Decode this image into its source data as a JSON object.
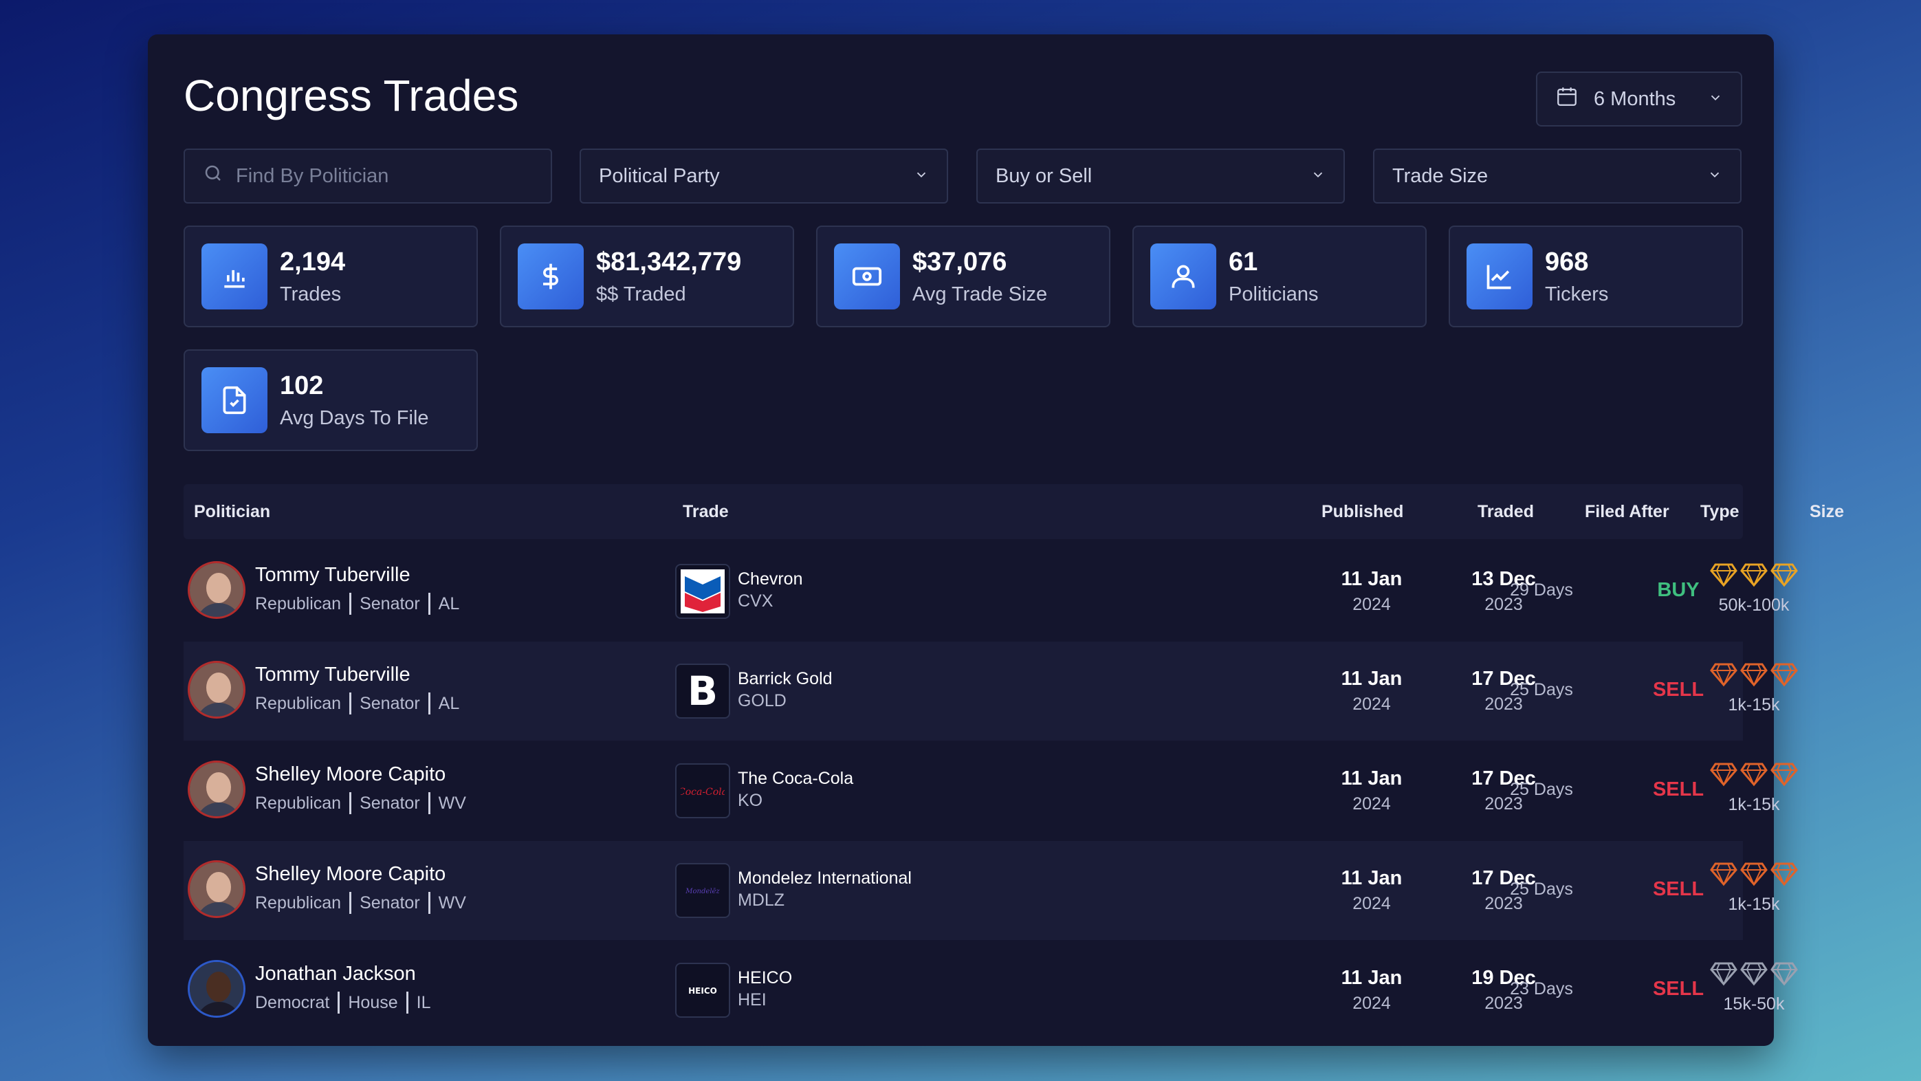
{
  "header": {
    "title": "Congress Trades",
    "period": "6 Months"
  },
  "filters": {
    "search_placeholder": "Find By Politician",
    "party": "Political Party",
    "buy_sell": "Buy or Sell",
    "trade_size": "Trade Size"
  },
  "stats": [
    {
      "value": "2,194",
      "caption": "Trades",
      "icon": "bar-chart-icon"
    },
    {
      "value": "$81,342,779",
      "caption": "$$ Traded",
      "icon": "dollar-icon"
    },
    {
      "value": "$37,076",
      "caption": "Avg Trade Size",
      "icon": "cash-icon"
    },
    {
      "value": "61",
      "caption": "Politicians",
      "icon": "person-icon"
    },
    {
      "value": "968",
      "caption": "Tickers",
      "icon": "line-chart-icon"
    },
    {
      "value": "102",
      "caption": "Avg Days To File",
      "icon": "document-check-icon"
    }
  ],
  "table": {
    "headers": {
      "politician": "Politician",
      "trade": "Trade",
      "published": "Published",
      "traded": "Traded",
      "filed_after": "Filed After",
      "type": "Type",
      "size": "Size"
    },
    "rows": [
      {
        "name": "Tommy Tuberville",
        "party": "Republican",
        "chamber": "Senator",
        "state": "AL",
        "company": "Chevron",
        "ticker": "CVX",
        "pub_day": "11 Jan",
        "pub_year": "2024",
        "trade_day": "13 Dec",
        "trade_year": "2023",
        "filed": "29 Days",
        "type": "BUY",
        "size": "50k-100k",
        "gem_color": "#e9a324"
      },
      {
        "name": "Tommy Tuberville",
        "party": "Republican",
        "chamber": "Senator",
        "state": "AL",
        "company": "Barrick Gold",
        "ticker": "GOLD",
        "pub_day": "11 Jan",
        "pub_year": "2024",
        "trade_day": "17 Dec",
        "trade_year": "2023",
        "filed": "25 Days",
        "type": "SELL",
        "size": "1k-15k",
        "gem_color": "#e0632a"
      },
      {
        "name": "Shelley Moore Capito",
        "party": "Republican",
        "chamber": "Senator",
        "state": "WV",
        "company": "The Coca-Cola",
        "ticker": "KO",
        "pub_day": "11 Jan",
        "pub_year": "2024",
        "trade_day": "17 Dec",
        "trade_year": "2023",
        "filed": "25 Days",
        "type": "SELL",
        "size": "1k-15k",
        "gem_color": "#e0632a"
      },
      {
        "name": "Shelley Moore Capito",
        "party": "Republican",
        "chamber": "Senator",
        "state": "WV",
        "company": "Mondelez International",
        "ticker": "MDLZ",
        "pub_day": "11 Jan",
        "pub_year": "2024",
        "trade_day": "17 Dec",
        "trade_year": "2023",
        "filed": "25 Days",
        "type": "SELL",
        "size": "1k-15k",
        "gem_color": "#e0632a"
      },
      {
        "name": "Jonathan Jackson",
        "party": "Democrat",
        "chamber": "House",
        "state": "IL",
        "company": "HEICO",
        "ticker": "HEI",
        "pub_day": "11 Jan",
        "pub_year": "2024",
        "trade_day": "19 Dec",
        "trade_year": "2023",
        "filed": "23 Days",
        "type": "SELL",
        "size": "15k-50k",
        "gem_color": "#9aa0b0"
      }
    ]
  },
  "colors": {
    "buy": "#3fbf7f",
    "sell": "#e5364a",
    "accent": "#3f7cf0"
  }
}
